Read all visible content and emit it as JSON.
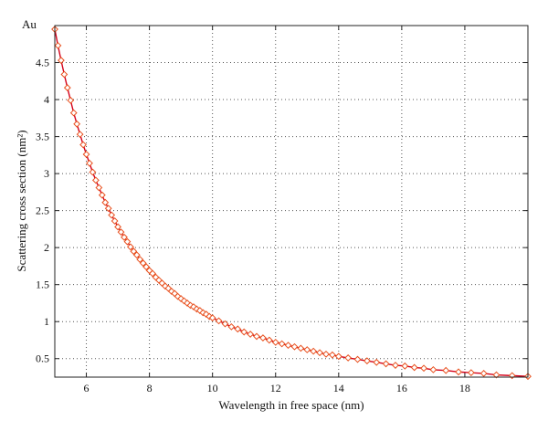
{
  "chart_data": {
    "type": "line",
    "title": "",
    "corner_label": "Au",
    "xlabel": "Wavelength in free space (nm)",
    "ylabel": "Scattering cross section (nm²)",
    "xlim": [
      5,
      20
    ],
    "ylim": [
      0.25,
      5
    ],
    "xticks": [
      6,
      8,
      10,
      12,
      14,
      16,
      18
    ],
    "xtick_labels": [
      "6",
      "8",
      "10",
      "12",
      "14",
      "16",
      "18"
    ],
    "yticks": [
      0.5,
      1,
      1.5,
      2,
      2.5,
      3,
      3.5,
      4,
      4.5
    ],
    "ytick_labels": [
      "0.5",
      "1",
      "1.5",
      "2",
      "2.5",
      "3",
      "3.5",
      "4",
      "4.5"
    ],
    "grid": true,
    "grid_style": "dotted",
    "marker": "diamond",
    "line_color": "#d4001a",
    "marker_color": "#e8501e",
    "series": [
      {
        "x": [
          5.0,
          5.1,
          5.2,
          5.3,
          5.4,
          5.5,
          5.6,
          5.7,
          5.8,
          5.9,
          6.0,
          6.1,
          6.2,
          6.3,
          6.4,
          6.5,
          6.6,
          6.7,
          6.8,
          6.9,
          7.0,
          7.1,
          7.2,
          7.3,
          7.4,
          7.5,
          7.6,
          7.7,
          7.8,
          7.9,
          8.0,
          8.1,
          8.2,
          8.3,
          8.4,
          8.5,
          8.6,
          8.7,
          8.8,
          8.9,
          9.0,
          9.1,
          9.2,
          9.3,
          9.4,
          9.5,
          9.6,
          9.7,
          9.8,
          9.9,
          10.0,
          10.2,
          10.4,
          10.6,
          10.8,
          11.0,
          11.2,
          11.4,
          11.6,
          11.8,
          12.0,
          12.2,
          12.4,
          12.6,
          12.8,
          13.0,
          13.2,
          13.4,
          13.6,
          13.8,
          14.0,
          14.3,
          14.6,
          14.9,
          15.2,
          15.5,
          15.8,
          16.1,
          16.4,
          16.7,
          17.0,
          17.4,
          17.8,
          18.2,
          18.6,
          19.0,
          19.5,
          20.0
        ],
        "y": [
          4.95,
          4.73,
          4.53,
          4.34,
          4.16,
          3.99,
          3.82,
          3.67,
          3.53,
          3.39,
          3.26,
          3.14,
          3.02,
          2.91,
          2.81,
          2.71,
          2.61,
          2.53,
          2.44,
          2.36,
          2.28,
          2.21,
          2.14,
          2.08,
          2.01,
          1.95,
          1.9,
          1.84,
          1.79,
          1.74,
          1.69,
          1.65,
          1.6,
          1.56,
          1.52,
          1.48,
          1.45,
          1.41,
          1.38,
          1.34,
          1.31,
          1.28,
          1.25,
          1.22,
          1.2,
          1.17,
          1.15,
          1.12,
          1.1,
          1.07,
          1.05,
          1.01,
          0.97,
          0.93,
          0.9,
          0.86,
          0.83,
          0.8,
          0.78,
          0.75,
          0.72,
          0.7,
          0.68,
          0.66,
          0.64,
          0.62,
          0.6,
          0.58,
          0.56,
          0.55,
          0.53,
          0.51,
          0.49,
          0.47,
          0.45,
          0.43,
          0.41,
          0.4,
          0.38,
          0.37,
          0.35,
          0.34,
          0.32,
          0.31,
          0.3,
          0.28,
          0.27,
          0.26
        ]
      }
    ]
  }
}
